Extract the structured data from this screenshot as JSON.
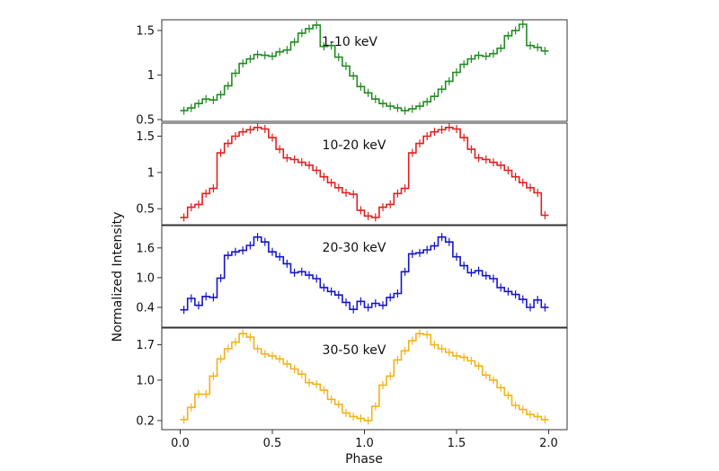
{
  "chart_data": {
    "type": "line",
    "xlabel": "Phase",
    "ylabel": "Normalized Intensity",
    "xlim": [
      -0.1,
      2.1
    ],
    "x_ticks": [
      "0.0",
      "0.5",
      "1.0",
      "1.5",
      "2.0"
    ],
    "x_tick_values": [
      0.0,
      0.5,
      1.0,
      1.5,
      2.0
    ],
    "bin_width": 0.04,
    "panels": [
      {
        "label": "1-10 keV",
        "color": "#228B22",
        "ylim": [
          0.48,
          1.62
        ],
        "y_ticks": [
          "0.5",
          "1",
          "1.5"
        ],
        "y_tick_values": [
          0.5,
          1.0,
          1.5
        ],
        "x": [
          0.0,
          0.04,
          0.08,
          0.12,
          0.16,
          0.2,
          0.24,
          0.28,
          0.32,
          0.36,
          0.4,
          0.44,
          0.48,
          0.52,
          0.56,
          0.6,
          0.64,
          0.68,
          0.72,
          0.76,
          0.8,
          0.84,
          0.88,
          0.92,
          0.96,
          1.0,
          1.04,
          1.08,
          1.12,
          1.16,
          1.2,
          1.24,
          1.28,
          1.32,
          1.36,
          1.4,
          1.44,
          1.48,
          1.52,
          1.56,
          1.6,
          1.64,
          1.68,
          1.72,
          1.76,
          1.8,
          1.84,
          1.88,
          1.92,
          1.96
        ],
        "y": [
          0.6,
          0.63,
          0.68,
          0.73,
          0.72,
          0.78,
          0.88,
          1.02,
          1.13,
          1.18,
          1.23,
          1.22,
          1.21,
          1.26,
          1.28,
          1.37,
          1.47,
          1.52,
          1.56,
          1.32,
          1.33,
          1.2,
          1.1,
          0.99,
          0.87,
          0.8,
          0.73,
          0.68,
          0.65,
          0.63,
          0.6,
          0.62,
          0.65,
          0.7,
          0.76,
          0.84,
          0.93,
          1.03,
          1.12,
          1.18,
          1.22,
          1.21,
          1.24,
          1.3,
          1.44,
          1.5,
          1.57,
          1.33,
          1.31,
          1.27
        ]
      },
      {
        "label": "10-20 keV",
        "color": "#E02020",
        "ylim": [
          0.28,
          1.68
        ],
        "y_ticks": [
          "0.5",
          "1",
          "1.5"
        ],
        "y_tick_values": [
          0.5,
          1.0,
          1.5
        ],
        "x": [
          0.0,
          0.04,
          0.08,
          0.12,
          0.16,
          0.2,
          0.24,
          0.28,
          0.32,
          0.36,
          0.4,
          0.44,
          0.48,
          0.52,
          0.56,
          0.6,
          0.64,
          0.68,
          0.72,
          0.76,
          0.8,
          0.84,
          0.88,
          0.92,
          0.96,
          1.0,
          1.04,
          1.08,
          1.12,
          1.16,
          1.2,
          1.24,
          1.28,
          1.32,
          1.36,
          1.4,
          1.44,
          1.48,
          1.52,
          1.56,
          1.6,
          1.64,
          1.68,
          1.72,
          1.76,
          1.8,
          1.84,
          1.88,
          1.92,
          1.96
        ],
        "y": [
          0.38,
          0.52,
          0.56,
          0.71,
          0.78,
          1.27,
          1.4,
          1.5,
          1.56,
          1.59,
          1.62,
          1.6,
          1.48,
          1.32,
          1.2,
          1.18,
          1.14,
          1.1,
          1.03,
          0.94,
          0.86,
          0.79,
          0.72,
          0.7,
          0.48,
          0.4,
          0.38,
          0.52,
          0.56,
          0.71,
          0.78,
          1.27,
          1.4,
          1.5,
          1.56,
          1.59,
          1.62,
          1.6,
          1.48,
          1.32,
          1.2,
          1.18,
          1.14,
          1.1,
          1.03,
          0.94,
          0.86,
          0.79,
          0.72,
          0.41
        ]
      },
      {
        "label": "20-30 keV",
        "color": "#1515C8",
        "ylim": [
          0.0,
          2.05
        ],
        "y_ticks": [
          "0.4",
          "1.0",
          "1.6"
        ],
        "y_tick_values": [
          0.4,
          1.0,
          1.6
        ],
        "x": [
          0.0,
          0.04,
          0.08,
          0.12,
          0.16,
          0.2,
          0.24,
          0.28,
          0.32,
          0.36,
          0.4,
          0.44,
          0.48,
          0.52,
          0.56,
          0.6,
          0.64,
          0.68,
          0.72,
          0.76,
          0.8,
          0.84,
          0.88,
          0.92,
          0.96,
          1.0,
          1.04,
          1.08,
          1.12,
          1.16,
          1.2,
          1.24,
          1.28,
          1.32,
          1.36,
          1.4,
          1.44,
          1.48,
          1.52,
          1.56,
          1.6,
          1.64,
          1.68,
          1.72,
          1.76,
          1.8,
          1.84,
          1.88,
          1.92,
          1.96
        ],
        "y": [
          0.35,
          0.58,
          0.44,
          0.62,
          0.6,
          0.99,
          1.45,
          1.52,
          1.55,
          1.65,
          1.82,
          1.72,
          1.52,
          1.42,
          1.28,
          1.1,
          1.12,
          1.05,
          0.98,
          0.8,
          0.72,
          0.65,
          0.5,
          0.36,
          0.52,
          0.4,
          0.48,
          0.44,
          0.6,
          0.68,
          1.12,
          1.48,
          1.5,
          1.56,
          1.64,
          1.82,
          1.72,
          1.42,
          1.24,
          1.1,
          1.14,
          1.04,
          0.98,
          0.8,
          0.72,
          0.66,
          0.56,
          0.4,
          0.55,
          0.4
        ]
      },
      {
        "label": "30-50 keV",
        "color": "#F2B21A",
        "ylim": [
          0.02,
          2.03
        ],
        "y_ticks": [
          "0.2",
          "1.0",
          "1.7"
        ],
        "y_tick_values": [
          0.2,
          1.0,
          1.7
        ],
        "x": [
          0.0,
          0.04,
          0.08,
          0.12,
          0.16,
          0.2,
          0.24,
          0.28,
          0.32,
          0.36,
          0.4,
          0.44,
          0.48,
          0.52,
          0.56,
          0.6,
          0.64,
          0.68,
          0.72,
          0.76,
          0.8,
          0.84,
          0.88,
          0.92,
          0.96,
          1.0,
          1.04,
          1.08,
          1.12,
          1.16,
          1.2,
          1.24,
          1.28,
          1.32,
          1.36,
          1.4,
          1.44,
          1.48,
          1.52,
          1.56,
          1.6,
          1.64,
          1.68,
          1.72,
          1.76,
          1.8,
          1.84,
          1.88,
          1.92,
          1.96
        ],
        "y": [
          0.22,
          0.46,
          0.72,
          0.72,
          1.08,
          1.42,
          1.62,
          1.75,
          1.92,
          1.85,
          1.62,
          1.52,
          1.48,
          1.42,
          1.32,
          1.22,
          1.12,
          0.95,
          0.92,
          0.8,
          0.62,
          0.52,
          0.35,
          0.28,
          0.24,
          0.2,
          0.48,
          0.9,
          1.08,
          1.4,
          1.58,
          1.78,
          1.92,
          1.9,
          1.7,
          1.62,
          1.55,
          1.48,
          1.45,
          1.38,
          1.28,
          1.1,
          1.0,
          0.85,
          0.7,
          0.5,
          0.42,
          0.32,
          0.28,
          0.22
        ]
      }
    ]
  }
}
